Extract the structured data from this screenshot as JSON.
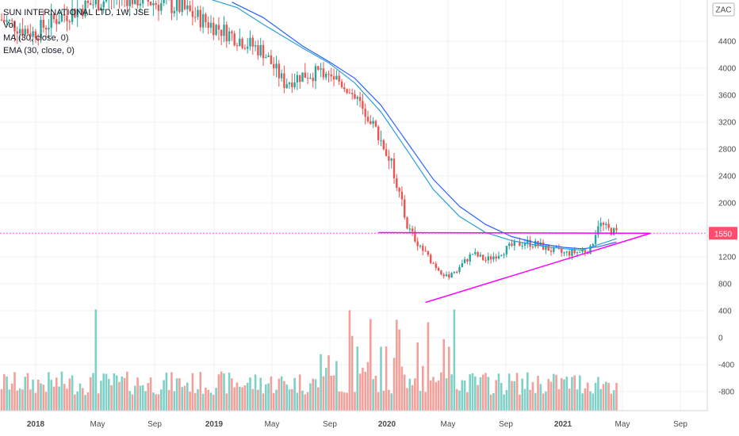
{
  "chart_data": {
    "type": "candlestick",
    "title": "SUN INTERNATIONAL LTD, 1W, JSE",
    "legend": [
      "Vol",
      "MA (30, close, 0)",
      "EMA (30, close, 0)"
    ],
    "currency_badge": "ZAC",
    "last_price_label": "1550",
    "price_axis_ticks": [
      "4400",
      "4000",
      "3600",
      "3200",
      "2800",
      "2400",
      "2000",
      "1200",
      "800",
      "400",
      "0",
      "-400",
      "-800"
    ],
    "time_axis_ticks": [
      {
        "label": "2018",
        "year": true
      },
      {
        "label": "May",
        "year": false
      },
      {
        "label": "Sep",
        "year": false
      },
      {
        "label": "2019",
        "year": true
      },
      {
        "label": "May",
        "year": false
      },
      {
        "label": "Sep",
        "year": false
      },
      {
        "label": "2020",
        "year": true
      },
      {
        "label": "May",
        "year": false
      },
      {
        "label": "Sep",
        "year": false
      },
      {
        "label": "2021",
        "year": true
      },
      {
        "label": "May",
        "year": false
      },
      {
        "label": "Sep",
        "year": false
      }
    ],
    "anchors": [
      [
        0,
        4720
      ],
      [
        12,
        4520
      ],
      [
        22,
        4760
      ],
      [
        35,
        4960
      ],
      [
        45,
        5080
      ],
      [
        55,
        5000
      ],
      [
        68,
        4900
      ],
      [
        80,
        4650
      ],
      [
        90,
        4450
      ],
      [
        100,
        4250
      ],
      [
        108,
        3780
      ],
      [
        115,
        3900
      ],
      [
        125,
        3950
      ],
      [
        135,
        3600
      ],
      [
        140,
        3300
      ],
      [
        145,
        2950
      ],
      [
        150,
        2450
      ],
      [
        155,
        1650
      ],
      [
        160,
        1350
      ],
      [
        165,
        1100
      ],
      [
        170,
        900
      ],
      [
        175,
        1050
      ],
      [
        180,
        1250
      ],
      [
        185,
        1150
      ],
      [
        190,
        1250
      ],
      [
        195,
        1360
      ],
      [
        200,
        1420
      ],
      [
        205,
        1380
      ],
      [
        210,
        1300
      ],
      [
        215,
        1250
      ],
      [
        220,
        1270
      ],
      [
        225,
        1310
      ],
      [
        228,
        1700
      ],
      [
        232,
        1600
      ],
      [
        235,
        1560
      ]
    ],
    "ma30_points": [
      [
        88,
        4980
      ],
      [
        100,
        4750
      ],
      [
        115,
        4330
      ],
      [
        125,
        4100
      ],
      [
        135,
        3850
      ],
      [
        145,
        3450
      ],
      [
        155,
        2900
      ],
      [
        165,
        2350
      ],
      [
        175,
        1950
      ],
      [
        185,
        1680
      ],
      [
        195,
        1500
      ],
      [
        205,
        1400
      ],
      [
        215,
        1340
      ],
      [
        222,
        1320
      ],
      [
        228,
        1350
      ],
      [
        235,
        1420
      ]
    ],
    "ema30_points": [
      [
        80,
        5020
      ],
      [
        90,
        4900
      ],
      [
        100,
        4650
      ],
      [
        115,
        4300
      ],
      [
        125,
        4080
      ],
      [
        135,
        3780
      ],
      [
        145,
        3350
      ],
      [
        155,
        2780
      ],
      [
        165,
        2200
      ],
      [
        175,
        1800
      ],
      [
        185,
        1560
      ],
      [
        195,
        1440
      ],
      [
        205,
        1370
      ],
      [
        215,
        1320
      ],
      [
        222,
        1300
      ],
      [
        228,
        1380
      ],
      [
        235,
        1470
      ]
    ],
    "horizontal_level": 1550,
    "triangle_lines": [
      {
        "from": [
          162,
          524
        ],
        "to": [
          248,
          1550
        ]
      },
      {
        "from": [
          144,
          1560
        ],
        "to": [
          248,
          1550
        ]
      }
    ],
    "volume_scale": {
      "min": -1000,
      "max": 400
    },
    "weeks_visible": 265,
    "week_zero_date": "2017-10-30"
  },
  "colors": {
    "up": "#26a69a",
    "down": "#ef5350",
    "vol_up": "#7fd0c6",
    "vol_down": "#f3a09b",
    "ma": "#2962ff",
    "ema": "#2a9fd8",
    "drawing": "#ff00ff",
    "grid": "#eef0f3",
    "axis_text": "#4a4a4a",
    "price_badge": "#ff4d6d"
  }
}
